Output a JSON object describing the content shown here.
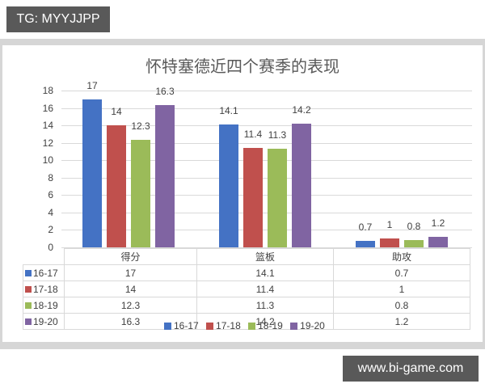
{
  "watermarks": {
    "top_left": "TG: MYYJJPP",
    "bottom_right": "www.bi-game.com"
  },
  "chart_data": {
    "type": "bar",
    "title": "怀特塞德近四个赛季的表现",
    "categories": [
      "得分",
      "篮板",
      "助攻"
    ],
    "series": [
      {
        "name": "16-17",
        "color": "#4472c4",
        "values": [
          17,
          14.1,
          0.7
        ]
      },
      {
        "name": "17-18",
        "color": "#c0504d",
        "values": [
          14,
          11.4,
          1
        ]
      },
      {
        "name": "18-19",
        "color": "#9bbb59",
        "values": [
          12.3,
          11.3,
          0.8
        ]
      },
      {
        "name": "19-20",
        "color": "#8064a2",
        "values": [
          16.3,
          14.2,
          1.2
        ]
      }
    ],
    "xlabel": "",
    "ylabel": "",
    "ylim": [
      0,
      18
    ],
    "yticks": [
      0,
      2,
      4,
      6,
      8,
      10,
      12,
      14,
      16,
      18
    ],
    "grid": true,
    "data_labels": true,
    "legend_position": "bottom",
    "data_table": true
  },
  "table": {
    "headers": [
      "得分",
      "篮板",
      "助攻"
    ],
    "rows": [
      {
        "label": "16-17",
        "values": [
          "17",
          "14.1",
          "0.7"
        ]
      },
      {
        "label": "17-18",
        "values": [
          "14",
          "11.4",
          "1"
        ]
      },
      {
        "label": "18-19",
        "values": [
          "12.3",
          "11.3",
          "0.8"
        ]
      },
      {
        "label": "19-20",
        "values": [
          "16.3",
          "14.2",
          "1.2"
        ]
      }
    ]
  },
  "legend": [
    "16-17",
    "17-18",
    "18-19",
    "19-20"
  ]
}
